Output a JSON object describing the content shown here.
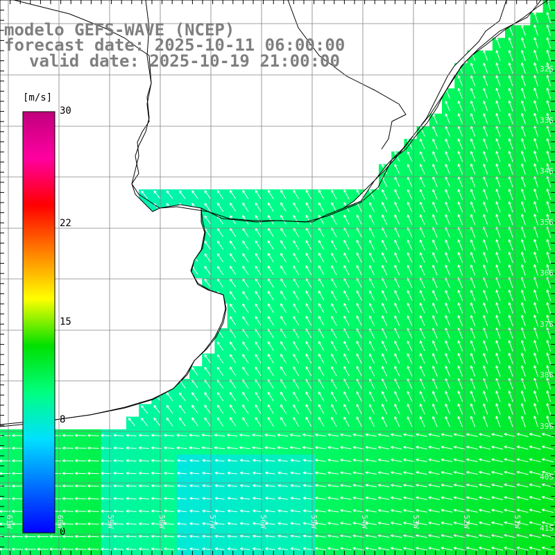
{
  "title": {
    "model": "modelo GEFS-WAVE (NCEP)",
    "forecast": "forecast date: 2025-10-11 06:00:00",
    "valid": "valid date: 2025-10-19 21:00:00"
  },
  "colorbar": {
    "units": "[m/s]",
    "min": 0,
    "max": 30,
    "ticks": [
      {
        "value": 30,
        "label": "30"
      },
      {
        "value": 22,
        "label": "22"
      },
      {
        "value": 15,
        "label": "15"
      },
      {
        "value": 8,
        "label": "8"
      },
      {
        "value": 0,
        "label": "0"
      }
    ],
    "colors": [
      "#0000ff",
      "#0070ff",
      "#00e0ff",
      "#00ff80",
      "#00e000",
      "#ffff00",
      "#ff8000",
      "#ff0000",
      "#ff00a0",
      "#c0007c"
    ]
  },
  "map": {
    "lat_labels": [
      "32S",
      "33S",
      "34S",
      "35S",
      "36S",
      "37S",
      "38S",
      "39S",
      "40S",
      "41S"
    ],
    "lon_labels": [
      "61W",
      "60W",
      "59W",
      "58W",
      "57W",
      "56W",
      "55W",
      "54W",
      "53W",
      "52W",
      "51W"
    ],
    "land_color": "#ffffff",
    "grid_color": "#808080",
    "arrow_color": "#ffffff",
    "coast_color": "#000000"
  }
}
